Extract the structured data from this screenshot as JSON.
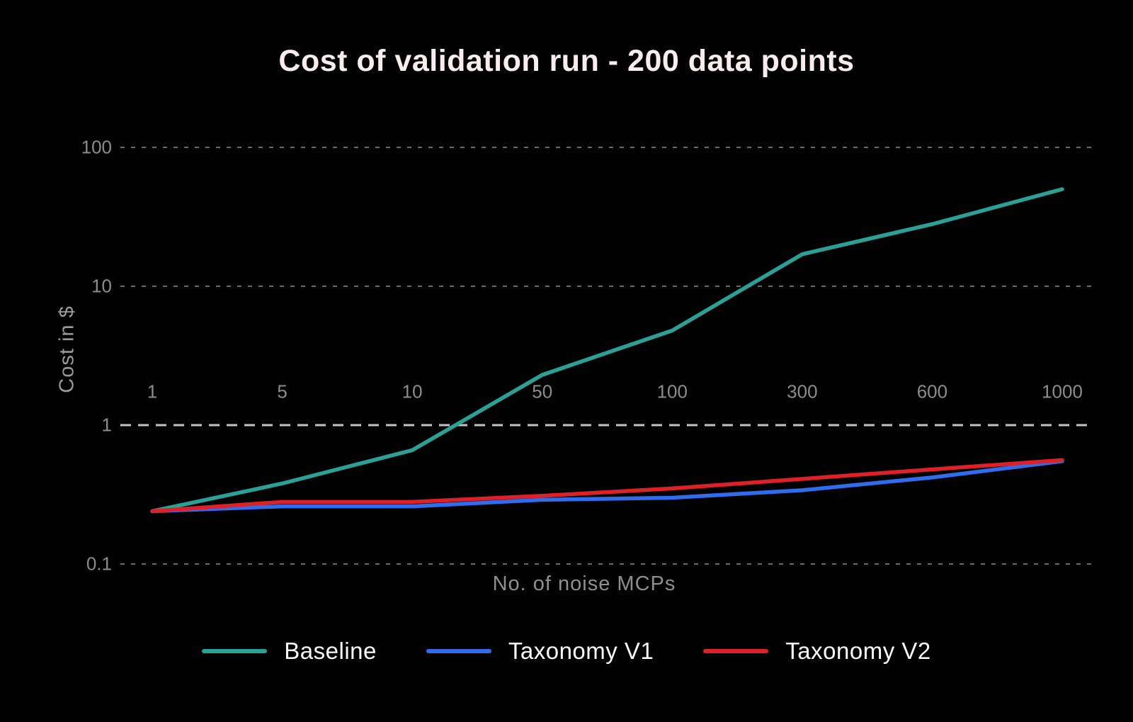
{
  "chart": {
    "title": "Cost of validation run - 200 data points",
    "x_axis_title": "No. of noise MCPs",
    "y_axis_title": "Cost in $"
  },
  "chart_data": {
    "type": "line",
    "title": "Cost of validation run - 200 data points",
    "xlabel": "No. of noise MCPs",
    "ylabel": "Cost in $",
    "x_scale": "category",
    "y_scale": "log10",
    "grid": "horizontal-dashed",
    "legend_position": "bottom",
    "background": "#020202",
    "categories": [
      "1",
      "5",
      "10",
      "50",
      "100",
      "300",
      "600",
      "1000"
    ],
    "y_ticks": [
      {
        "label": "100",
        "value": 100
      },
      {
        "label": "10",
        "value": 10
      },
      {
        "label": "1",
        "value": 1
      },
      {
        "label": "0.1",
        "value": 0.1
      }
    ],
    "ylim": [
      0.1,
      100
    ],
    "series": [
      {
        "name": "Baseline",
        "color": "#2aa096",
        "values": [
          0.24,
          0.38,
          0.66,
          2.3,
          4.8,
          17,
          28,
          50
        ]
      },
      {
        "name": "Taxonomy V1",
        "color": "#2f6cee",
        "values": [
          0.24,
          0.26,
          0.26,
          0.29,
          0.3,
          0.34,
          0.42,
          0.55
        ]
      },
      {
        "name": "Taxonomy V2",
        "color": "#df2127",
        "values": [
          0.24,
          0.28,
          0.28,
          0.31,
          0.35,
          0.41,
          0.48,
          0.56
        ]
      }
    ],
    "colors": {
      "grid": "#6b6b6b",
      "axis_line": "#c4c4c4",
      "tick_text": "#8c8c8c",
      "title_text": "#f8ecec",
      "legend_text": "#fbfbfb"
    }
  }
}
